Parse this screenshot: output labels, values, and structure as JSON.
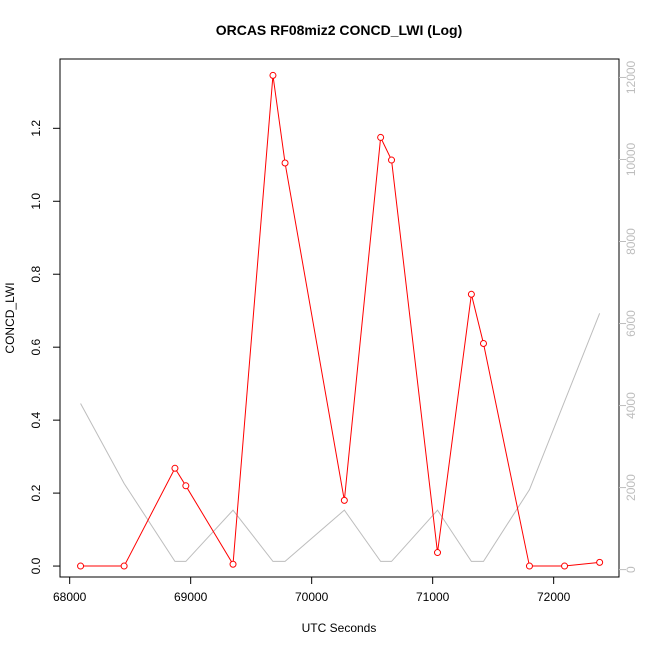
{
  "chart_data": {
    "type": "line",
    "title": "ORCAS RF08miz2 CONCD_LWI (Log)",
    "xlabel": "UTC Seconds",
    "ylabel": "CONCD_LWI",
    "xlim": [
      67920,
      72540
    ],
    "ylim": [
      -0.03,
      1.39
    ],
    "y2lim": [
      -180,
      12450
    ],
    "xticks": [
      68000,
      69000,
      70000,
      71000,
      72000
    ],
    "yticks": [
      0.0,
      0.2,
      0.4,
      0.6,
      0.8,
      1.0,
      1.2
    ],
    "y2ticks": [
      0,
      2000,
      4000,
      6000,
      8000,
      10000,
      12000
    ],
    "xtick_labels": [
      "68000",
      "69000",
      "70000",
      "71000",
      "72000"
    ],
    "ytick_labels": [
      "0.0",
      "0.2",
      "0.4",
      "0.6",
      "0.8",
      "1.0",
      "1.2"
    ],
    "y2tick_labels": [
      "0",
      "2000",
      "4000",
      "6000",
      "8000",
      "10000",
      "12000"
    ],
    "series": [
      {
        "role": "primary",
        "color": "#ff0000",
        "marker": "open-circle",
        "x": [
          68090,
          68450,
          68870,
          68960,
          69350,
          69680,
          69780,
          70270,
          70570,
          70660,
          71040,
          71320,
          71420,
          71800,
          72090,
          72380
        ],
        "y": [
          0.0,
          0.0,
          0.268,
          0.22,
          0.005,
          1.345,
          1.105,
          0.18,
          1.175,
          1.113,
          0.037,
          0.745,
          0.61,
          0.0,
          0.0,
          0.01
        ]
      },
      {
        "role": "secondary-axis",
        "color": "#bdbdbd",
        "marker": "none",
        "x": [
          68090,
          68450,
          68870,
          68960,
          69350,
          69680,
          69780,
          70270,
          70570,
          70660,
          71040,
          71320,
          71420,
          71800,
          72090,
          72380
        ],
        "y": [
          4050,
          2100,
          200,
          200,
          1450,
          200,
          200,
          1450,
          200,
          200,
          1450,
          200,
          200,
          1950,
          4100,
          6250
        ]
      }
    ],
    "grid": false,
    "legend": "none"
  }
}
